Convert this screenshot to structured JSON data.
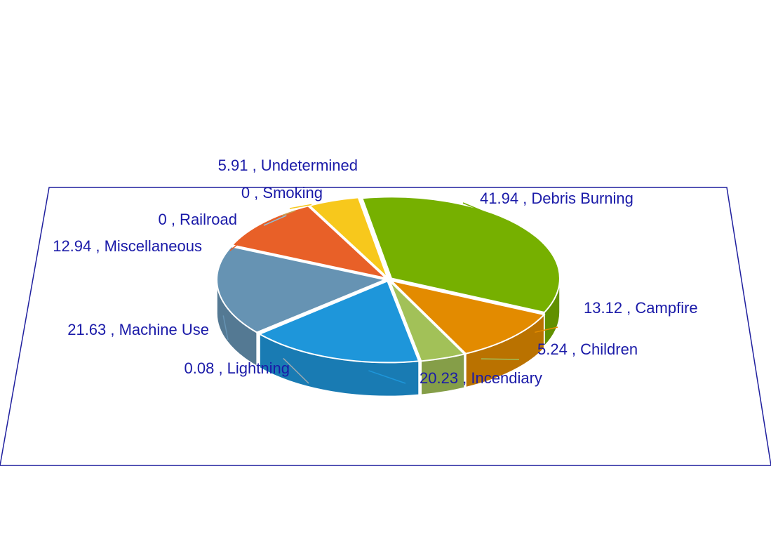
{
  "chart_data": {
    "type": "pie",
    "title": "",
    "label_separator": " , ",
    "slices": [
      {
        "name": "Debris Burning",
        "value": 41.94,
        "color": "#76b000"
      },
      {
        "name": "Campfire",
        "value": 13.12,
        "color": "#e38b00"
      },
      {
        "name": "Children",
        "value": 5.24,
        "color": "#a2c158"
      },
      {
        "name": "Incendiary",
        "value": 20.23,
        "color": "#1e96da"
      },
      {
        "name": "Lightning",
        "value": 0.08,
        "color": "#9aa8b0"
      },
      {
        "name": "Machine Use",
        "value": 21.63,
        "color": "#6693b3"
      },
      {
        "name": "Miscellaneous",
        "value": 12.94,
        "color": "#e86028"
      },
      {
        "name": "Railroad",
        "value": 0,
        "color": "#8fbfd8"
      },
      {
        "name": "Smoking",
        "value": 0,
        "color": "#c8a050"
      },
      {
        "name": "Undetermined",
        "value": 5.91,
        "color": "#f7c81c"
      }
    ],
    "legend": "none",
    "style": "3d-exploded"
  }
}
